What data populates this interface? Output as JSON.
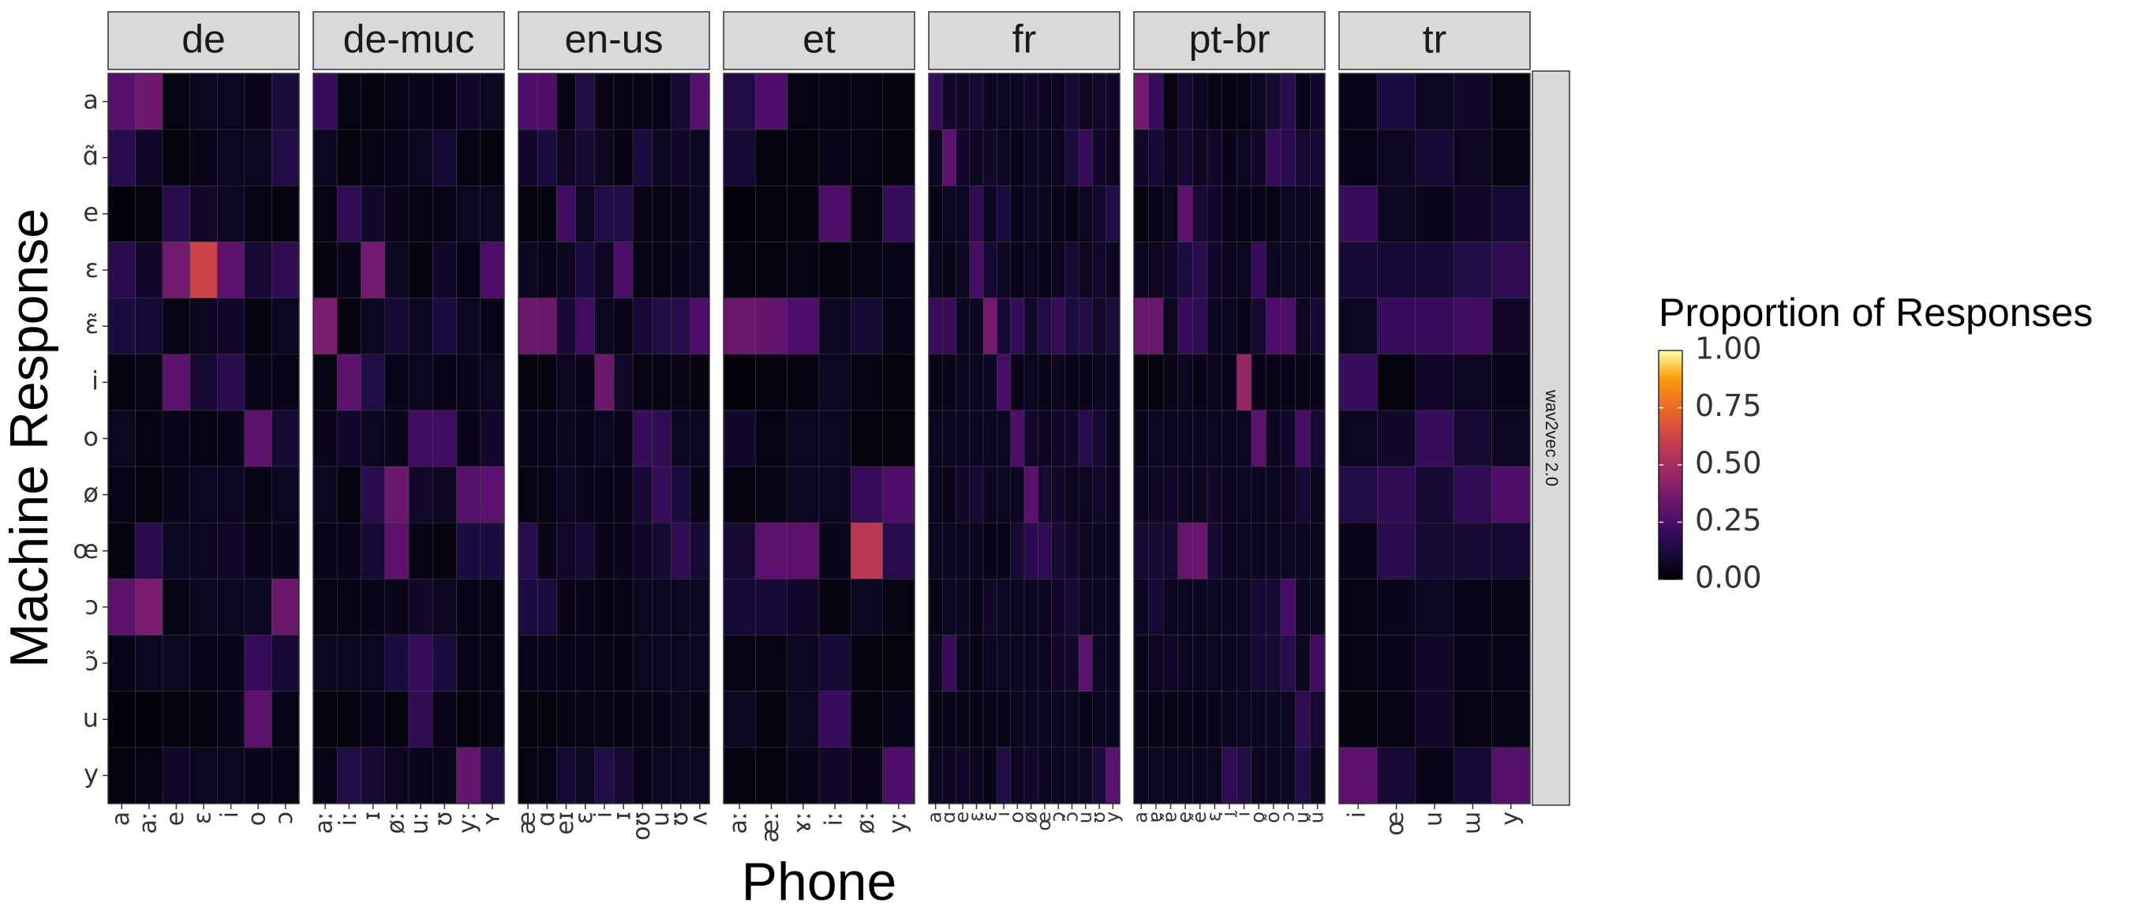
{
  "chart_data": {
    "type": "heatmap",
    "xlabel": "Phone",
    "ylabel": "Machine Response",
    "row_strip": "wav2vec 2.0",
    "legend": {
      "title": "Proportion of Responses",
      "ticks": [
        "1.00",
        "0.75",
        "0.50",
        "0.25",
        "0.00"
      ],
      "range": [
        0,
        1
      ],
      "placement": "right"
    },
    "y_categories": [
      "a",
      "ɑ̃",
      "e",
      "ɛ",
      "ɛ̃",
      "i",
      "o",
      "ø",
      "œ",
      "ɔ",
      "ɔ̃",
      "u",
      "y"
    ],
    "colorscale": "inferno",
    "panels": [
      {
        "name": "de",
        "x": [
          "a",
          "aː",
          "e",
          "ɛ",
          "i",
          "o",
          "ɔ"
        ],
        "values": [
          [
            0.28,
            0.35,
            0.03,
            0.06,
            0.06,
            0.04,
            0.12
          ],
          [
            0.16,
            0.08,
            0.02,
            0.04,
            0.06,
            0.06,
            0.14
          ],
          [
            0.01,
            0.02,
            0.16,
            0.08,
            0.06,
            0.03,
            0.02
          ],
          [
            0.16,
            0.08,
            0.36,
            0.62,
            0.3,
            0.1,
            0.18
          ],
          [
            0.12,
            0.1,
            0.03,
            0.06,
            0.08,
            0.02,
            0.06
          ],
          [
            0.02,
            0.03,
            0.3,
            0.1,
            0.16,
            0.05,
            0.04
          ],
          [
            0.06,
            0.03,
            0.04,
            0.03,
            0.04,
            0.3,
            0.1
          ],
          [
            0.04,
            0.02,
            0.05,
            0.06,
            0.06,
            0.03,
            0.06
          ],
          [
            0.02,
            0.16,
            0.06,
            0.06,
            0.08,
            0.05,
            0.05
          ],
          [
            0.3,
            0.38,
            0.03,
            0.06,
            0.06,
            0.06,
            0.34
          ],
          [
            0.04,
            0.06,
            0.06,
            0.04,
            0.04,
            0.2,
            0.1
          ],
          [
            0.01,
            0.01,
            0.02,
            0.02,
            0.04,
            0.3,
            0.04
          ],
          [
            0.02,
            0.03,
            0.08,
            0.06,
            0.06,
            0.05,
            0.04
          ]
        ]
      },
      {
        "name": "de-muc",
        "x": [
          "aː",
          "iː",
          "ɪ",
          "øː",
          "uː",
          "ʊ",
          "yː",
          "ʏ"
        ],
        "values": [
          [
            0.2,
            0.03,
            0.02,
            0.03,
            0.05,
            0.04,
            0.08,
            0.06
          ],
          [
            0.06,
            0.02,
            0.03,
            0.04,
            0.06,
            0.1,
            0.03,
            0.02
          ],
          [
            0.03,
            0.18,
            0.08,
            0.05,
            0.03,
            0.04,
            0.06,
            0.06
          ],
          [
            0.02,
            0.05,
            0.36,
            0.06,
            0.02,
            0.08,
            0.04,
            0.26
          ],
          [
            0.38,
            0.02,
            0.06,
            0.1,
            0.06,
            0.12,
            0.06,
            0.04
          ],
          [
            0.03,
            0.3,
            0.14,
            0.04,
            0.06,
            0.04,
            0.05,
            0.06
          ],
          [
            0.05,
            0.08,
            0.06,
            0.05,
            0.22,
            0.22,
            0.04,
            0.08
          ],
          [
            0.06,
            0.02,
            0.16,
            0.34,
            0.08,
            0.06,
            0.28,
            0.3
          ],
          [
            0.04,
            0.05,
            0.1,
            0.3,
            0.03,
            0.02,
            0.12,
            0.12
          ],
          [
            0.03,
            0.03,
            0.04,
            0.05,
            0.08,
            0.06,
            0.04,
            0.04
          ],
          [
            0.06,
            0.06,
            0.06,
            0.12,
            0.2,
            0.12,
            0.04,
            0.04
          ],
          [
            0.02,
            0.02,
            0.04,
            0.02,
            0.18,
            0.04,
            0.02,
            0.03
          ],
          [
            0.04,
            0.14,
            0.1,
            0.06,
            0.05,
            0.05,
            0.32,
            0.14
          ]
        ]
      },
      {
        "name": "en-us",
        "x": [
          "æ",
          "ɑ",
          "eɪ",
          "ɛ",
          "i",
          "ɪ",
          "oʊ",
          "u",
          "ʊ",
          "ʌ"
        ],
        "values": [
          [
            0.26,
            0.26,
            0.03,
            0.14,
            0.04,
            0.03,
            0.04,
            0.04,
            0.1,
            0.28
          ],
          [
            0.08,
            0.12,
            0.06,
            0.1,
            0.06,
            0.03,
            0.12,
            0.06,
            0.08,
            0.06
          ],
          [
            0.02,
            0.02,
            0.22,
            0.06,
            0.14,
            0.14,
            0.04,
            0.03,
            0.04,
            0.06
          ],
          [
            0.06,
            0.04,
            0.06,
            0.12,
            0.06,
            0.26,
            0.03,
            0.03,
            0.05,
            0.06
          ],
          [
            0.34,
            0.34,
            0.1,
            0.22,
            0.06,
            0.04,
            0.1,
            0.14,
            0.16,
            0.26
          ],
          [
            0.02,
            0.02,
            0.06,
            0.04,
            0.34,
            0.08,
            0.03,
            0.03,
            0.04,
            0.02
          ],
          [
            0.04,
            0.04,
            0.06,
            0.04,
            0.06,
            0.04,
            0.2,
            0.18,
            0.06,
            0.06
          ],
          [
            0.03,
            0.03,
            0.06,
            0.05,
            0.04,
            0.04,
            0.1,
            0.2,
            0.12,
            0.05
          ],
          [
            0.16,
            0.05,
            0.08,
            0.1,
            0.04,
            0.05,
            0.08,
            0.1,
            0.18,
            0.1
          ],
          [
            0.12,
            0.12,
            0.04,
            0.04,
            0.02,
            0.03,
            0.06,
            0.06,
            0.06,
            0.06
          ],
          [
            0.05,
            0.05,
            0.04,
            0.05,
            0.03,
            0.03,
            0.06,
            0.06,
            0.06,
            0.06
          ],
          [
            0.02,
            0.02,
            0.03,
            0.03,
            0.03,
            0.03,
            0.04,
            0.04,
            0.06,
            0.04
          ],
          [
            0.03,
            0.03,
            0.1,
            0.06,
            0.14,
            0.1,
            0.04,
            0.06,
            0.06,
            0.06
          ]
        ]
      },
      {
        "name": "et",
        "x": [
          "aː",
          "æː",
          "ɤː",
          "iː",
          "øː",
          "yː"
        ],
        "values": [
          [
            0.14,
            0.26,
            0.03,
            0.03,
            0.03,
            0.02
          ],
          [
            0.1,
            0.02,
            0.02,
            0.04,
            0.03,
            0.02
          ],
          [
            0.01,
            0.02,
            0.02,
            0.26,
            0.03,
            0.2
          ],
          [
            0.02,
            0.02,
            0.03,
            0.02,
            0.03,
            0.04
          ],
          [
            0.34,
            0.32,
            0.26,
            0.06,
            0.1,
            0.04
          ],
          [
            0.01,
            0.02,
            0.02,
            0.06,
            0.03,
            0.02
          ],
          [
            0.08,
            0.03,
            0.06,
            0.06,
            0.02,
            0.02
          ],
          [
            0.02,
            0.03,
            0.06,
            0.06,
            0.2,
            0.26
          ],
          [
            0.1,
            0.3,
            0.3,
            0.05,
            0.56,
            0.16
          ],
          [
            0.1,
            0.1,
            0.08,
            0.02,
            0.06,
            0.03
          ],
          [
            0.03,
            0.03,
            0.06,
            0.1,
            0.02,
            0.02
          ],
          [
            0.06,
            0.02,
            0.06,
            0.2,
            0.02,
            0.04
          ],
          [
            0.02,
            0.02,
            0.04,
            0.08,
            0.04,
            0.26
          ]
        ]
      },
      {
        "name": "fr",
        "x": [
          "a",
          "ɑ",
          "e",
          "ɛ",
          "ɛ̃",
          "i",
          "o",
          "ø",
          "œ",
          "ɔ",
          "ɔ̃",
          "u",
          "ʊ",
          "y"
        ],
        "values": [
          [
            0.2,
            0.08,
            0.08,
            0.1,
            0.06,
            0.06,
            0.06,
            0.08,
            0.06,
            0.06,
            0.1,
            0.06,
            0.08,
            0.08
          ],
          [
            0.06,
            0.3,
            0.08,
            0.06,
            0.08,
            0.06,
            0.04,
            0.06,
            0.06,
            0.06,
            0.12,
            0.2,
            0.08,
            0.06
          ],
          [
            0.04,
            0.06,
            0.06,
            0.18,
            0.06,
            0.12,
            0.04,
            0.06,
            0.06,
            0.04,
            0.04,
            0.06,
            0.08,
            0.14
          ],
          [
            0.06,
            0.04,
            0.06,
            0.24,
            0.1,
            0.06,
            0.04,
            0.06,
            0.04,
            0.06,
            0.1,
            0.06,
            0.08,
            0.06
          ],
          [
            0.2,
            0.2,
            0.06,
            0.06,
            0.36,
            0.1,
            0.2,
            0.08,
            0.14,
            0.2,
            0.12,
            0.14,
            0.08,
            0.12
          ],
          [
            0.04,
            0.04,
            0.06,
            0.06,
            0.06,
            0.24,
            0.04,
            0.06,
            0.04,
            0.06,
            0.04,
            0.04,
            0.06,
            0.06
          ],
          [
            0.06,
            0.06,
            0.06,
            0.06,
            0.06,
            0.06,
            0.26,
            0.08,
            0.06,
            0.08,
            0.08,
            0.16,
            0.1,
            0.06
          ],
          [
            0.06,
            0.04,
            0.08,
            0.1,
            0.06,
            0.06,
            0.06,
            0.3,
            0.1,
            0.08,
            0.06,
            0.06,
            0.08,
            0.06
          ],
          [
            0.06,
            0.06,
            0.06,
            0.06,
            0.04,
            0.04,
            0.1,
            0.16,
            0.18,
            0.1,
            0.08,
            0.06,
            0.06,
            0.06
          ],
          [
            0.04,
            0.06,
            0.06,
            0.04,
            0.08,
            0.06,
            0.06,
            0.06,
            0.06,
            0.08,
            0.1,
            0.06,
            0.06,
            0.06
          ],
          [
            0.06,
            0.2,
            0.06,
            0.04,
            0.06,
            0.06,
            0.06,
            0.06,
            0.06,
            0.08,
            0.08,
            0.3,
            0.06,
            0.06
          ],
          [
            0.04,
            0.04,
            0.04,
            0.04,
            0.04,
            0.04,
            0.06,
            0.06,
            0.06,
            0.06,
            0.06,
            0.04,
            0.06,
            0.06
          ],
          [
            0.06,
            0.06,
            0.08,
            0.06,
            0.04,
            0.14,
            0.06,
            0.08,
            0.06,
            0.06,
            0.06,
            0.06,
            0.12,
            0.3
          ]
        ]
      },
      {
        "name": "pt-br",
        "x": [
          "a",
          "ɐ",
          "ɐ̃",
          "e",
          "ẽ",
          "ɛ",
          "i",
          "ĩ",
          "o",
          "õ",
          "ɔ",
          "u",
          "ũ"
        ],
        "values": [
          [
            0.36,
            0.2,
            0.03,
            0.1,
            0.06,
            0.04,
            0.03,
            0.03,
            0.06,
            0.1,
            0.16,
            0.04,
            0.08
          ],
          [
            0.08,
            0.1,
            0.06,
            0.1,
            0.06,
            0.08,
            0.04,
            0.06,
            0.08,
            0.2,
            0.16,
            0.1,
            0.1
          ],
          [
            0.02,
            0.04,
            0.06,
            0.3,
            0.1,
            0.08,
            0.04,
            0.04,
            0.04,
            0.04,
            0.06,
            0.06,
            0.06
          ],
          [
            0.06,
            0.06,
            0.08,
            0.12,
            0.16,
            0.08,
            0.06,
            0.06,
            0.2,
            0.06,
            0.06,
            0.06,
            0.06
          ],
          [
            0.34,
            0.34,
            0.06,
            0.2,
            0.18,
            0.06,
            0.06,
            0.04,
            0.1,
            0.26,
            0.26,
            0.06,
            0.1
          ],
          [
            0.02,
            0.02,
            0.04,
            0.06,
            0.04,
            0.06,
            0.04,
            0.46,
            0.04,
            0.04,
            0.04,
            0.04,
            0.04
          ],
          [
            0.04,
            0.06,
            0.06,
            0.06,
            0.06,
            0.06,
            0.06,
            0.06,
            0.3,
            0.06,
            0.08,
            0.24,
            0.1
          ],
          [
            0.06,
            0.06,
            0.08,
            0.06,
            0.06,
            0.08,
            0.06,
            0.06,
            0.06,
            0.06,
            0.06,
            0.1,
            0.06
          ],
          [
            0.1,
            0.1,
            0.1,
            0.32,
            0.34,
            0.1,
            0.06,
            0.06,
            0.06,
            0.06,
            0.06,
            0.06,
            0.06
          ],
          [
            0.06,
            0.1,
            0.06,
            0.06,
            0.06,
            0.06,
            0.06,
            0.06,
            0.1,
            0.1,
            0.24,
            0.06,
            0.06
          ],
          [
            0.04,
            0.06,
            0.08,
            0.06,
            0.06,
            0.06,
            0.06,
            0.06,
            0.1,
            0.1,
            0.16,
            0.06,
            0.22
          ],
          [
            0.04,
            0.04,
            0.04,
            0.04,
            0.04,
            0.04,
            0.06,
            0.06,
            0.06,
            0.06,
            0.06,
            0.18,
            0.1
          ],
          [
            0.06,
            0.06,
            0.06,
            0.06,
            0.06,
            0.06,
            0.18,
            0.14,
            0.06,
            0.06,
            0.06,
            0.14,
            0.06
          ]
        ]
      },
      {
        "name": "tr",
        "x": [
          "i",
          "œ",
          "u",
          "ɯ",
          "y"
        ],
        "values": [
          [
            0.04,
            0.12,
            0.06,
            0.08,
            0.03
          ],
          [
            0.04,
            0.06,
            0.1,
            0.06,
            0.03
          ],
          [
            0.2,
            0.06,
            0.05,
            0.08,
            0.1
          ],
          [
            0.1,
            0.1,
            0.1,
            0.14,
            0.18
          ],
          [
            0.06,
            0.2,
            0.2,
            0.22,
            0.08
          ],
          [
            0.2,
            0.02,
            0.08,
            0.06,
            0.04
          ],
          [
            0.06,
            0.08,
            0.2,
            0.1,
            0.06
          ],
          [
            0.14,
            0.18,
            0.1,
            0.18,
            0.26
          ],
          [
            0.04,
            0.16,
            0.1,
            0.1,
            0.1
          ],
          [
            0.03,
            0.05,
            0.06,
            0.04,
            0.03
          ],
          [
            0.03,
            0.05,
            0.08,
            0.05,
            0.04
          ],
          [
            0.02,
            0.03,
            0.08,
            0.03,
            0.03
          ],
          [
            0.3,
            0.1,
            0.04,
            0.1,
            0.28
          ]
        ]
      }
    ]
  }
}
